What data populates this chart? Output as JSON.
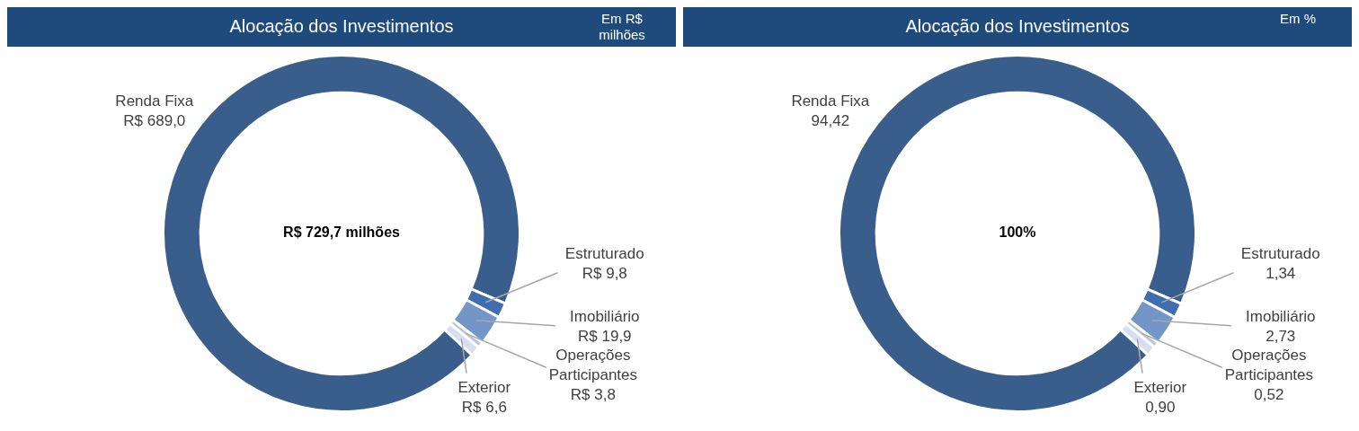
{
  "chart_data": [
    {
      "type": "donut",
      "title": "Alocação dos Investimentos",
      "subtitle": "Em R$ milhões",
      "categories": [
        "Renda Fixa",
        "Estruturado",
        "Imobiliário",
        "Operações Participantes",
        "Exterior"
      ],
      "values": [
        689.0,
        9.8,
        19.9,
        3.8,
        6.6
      ],
      "value_labels": [
        "R$ 689,0",
        "R$ 9,8",
        "R$ 19,9",
        "R$ 3,8",
        "R$ 6,6"
      ],
      "colors": [
        "#3a5e8c",
        "#3f6db0",
        "#7395c8",
        "#b4c6e2",
        "#d5dfef"
      ],
      "annotations": [
        "R$ 729,7 milhões"
      ]
    },
    {
      "type": "donut",
      "title": "Alocação dos Investimentos",
      "subtitle": "Em %",
      "categories": [
        "Renda Fixa",
        "Estruturado",
        "Imobiliário",
        "Operações Participantes",
        "Exterior"
      ],
      "values": [
        94.42,
        1.34,
        2.73,
        0.52,
        0.9
      ],
      "value_labels": [
        "94,42",
        "1,34",
        "2,73",
        "0,52",
        "0,90"
      ],
      "colors": [
        "#3a5e8c",
        "#3f6db0",
        "#7395c8",
        "#b4c6e2",
        "#d5dfef"
      ],
      "annotations": [
        "100%"
      ]
    }
  ]
}
